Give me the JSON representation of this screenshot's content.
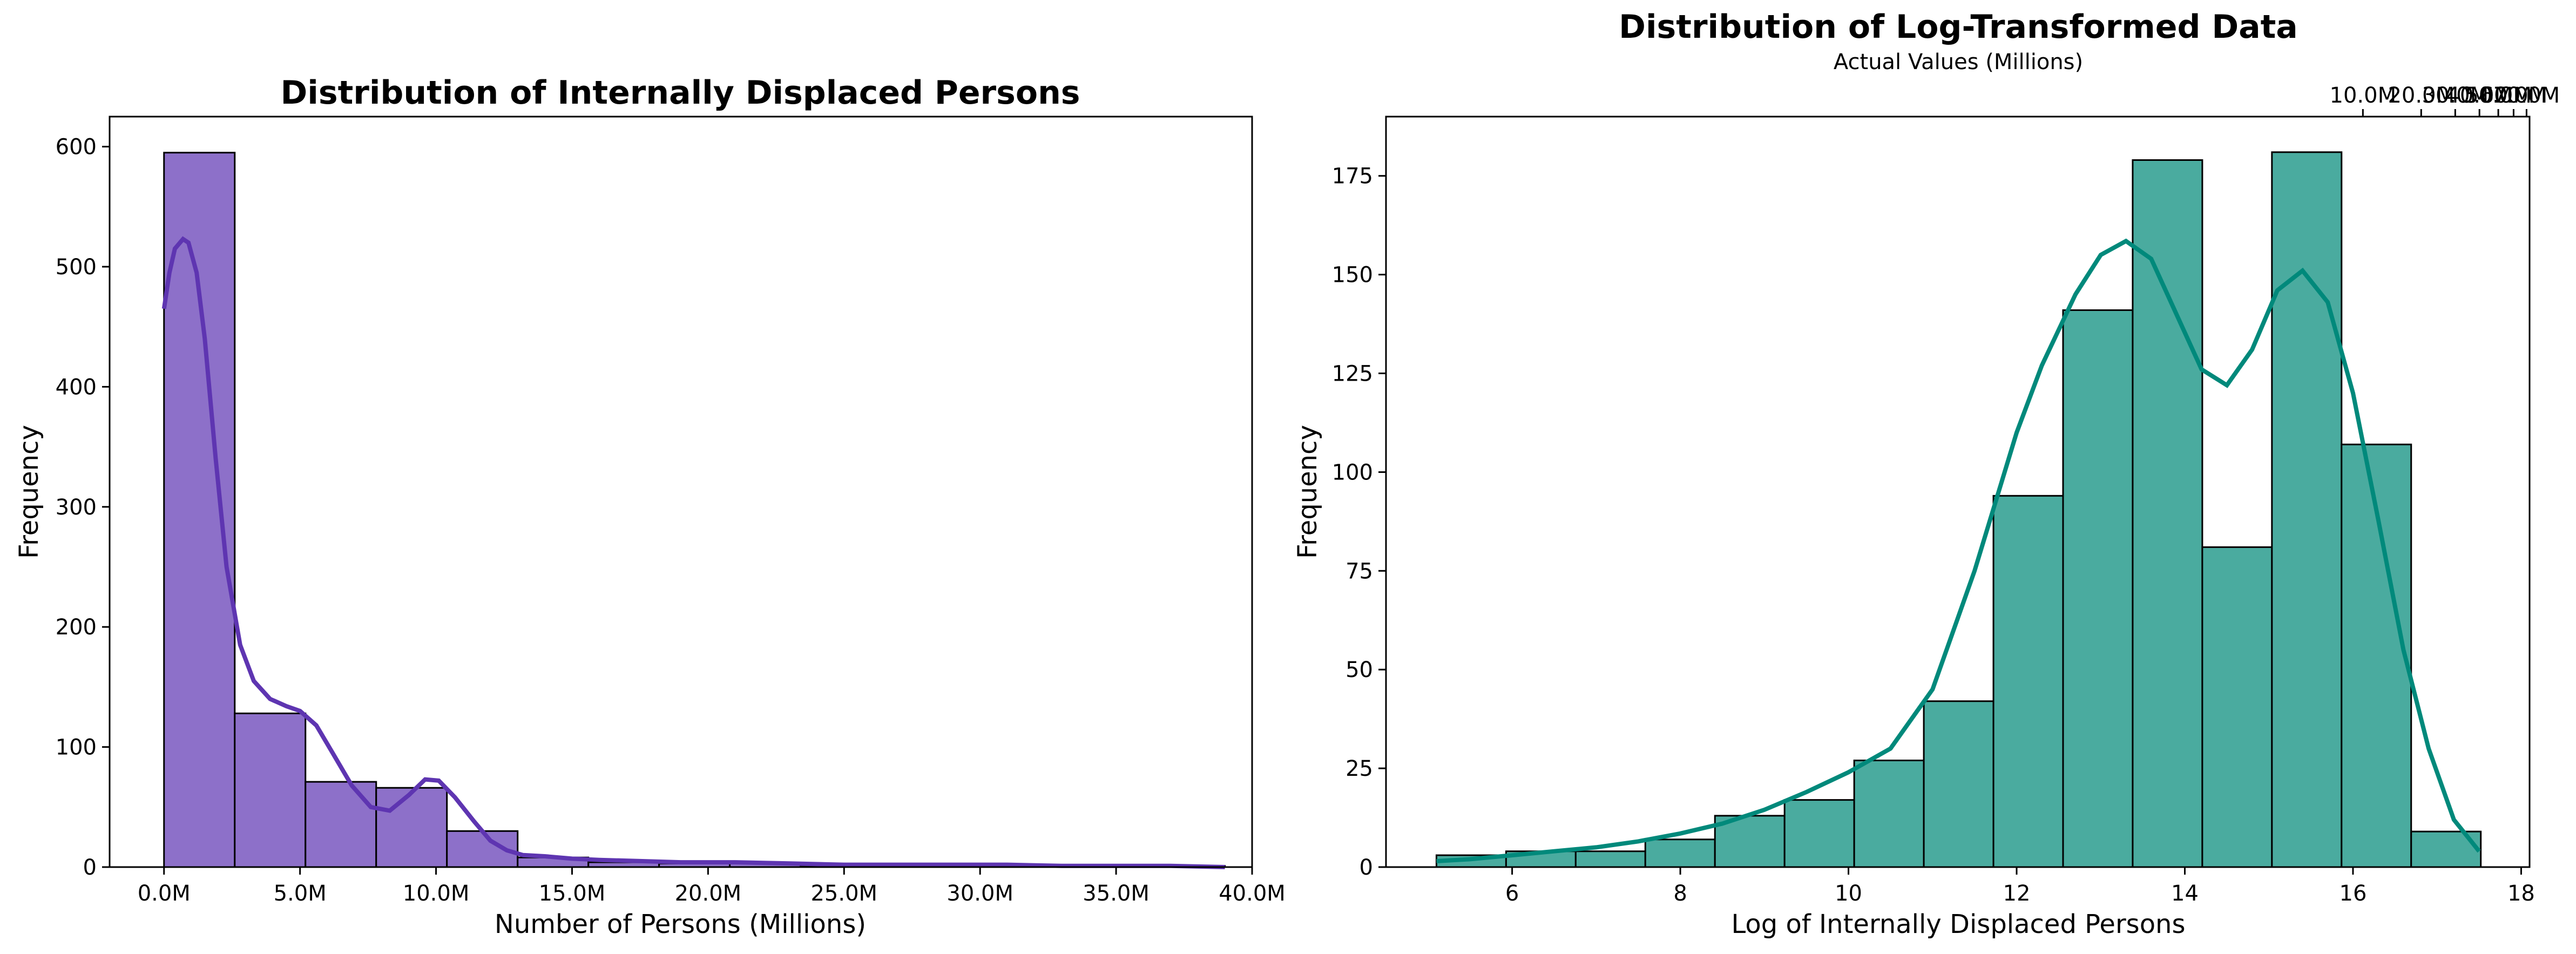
{
  "chart_data": [
    {
      "type": "bar",
      "title": "Distribution of Internally Displaced Persons",
      "xlabel": "Number of Persons (Millions)",
      "ylabel": "Frequency",
      "xlim": [
        -2.0,
        40.0
      ],
      "ylim": [
        0,
        625
      ],
      "x_ticks": [
        0,
        5,
        10,
        15,
        20,
        25,
        30,
        35,
        40
      ],
      "x_tick_labels": [
        "0.0M",
        "5.0M",
        "10.0M",
        "15.0M",
        "20.0M",
        "25.0M",
        "30.0M",
        "35.0M",
        "40.0M"
      ],
      "y_ticks": [
        0,
        100,
        200,
        300,
        400,
        500,
        600
      ],
      "bin_edges": [
        0.0,
        2.6,
        5.2,
        7.8,
        10.4,
        13.0,
        15.6,
        18.2,
        20.8,
        23.4,
        26.0,
        28.6,
        31.2,
        33.8,
        36.4,
        39.0
      ],
      "values": [
        595,
        128,
        71,
        66,
        30,
        8,
        4,
        3,
        3,
        1,
        1,
        1,
        0,
        0,
        1
      ],
      "bar_color": "#8d70c9",
      "kde_color": "#5e35b1",
      "kde": {
        "x": [
          0,
          0.2,
          0.4,
          0.7,
          0.9,
          1.2,
          1.5,
          1.9,
          2.3,
          2.8,
          3.3,
          3.9,
          4.5,
          5.0,
          5.6,
          6.2,
          6.9,
          7.6,
          8.3,
          9.0,
          9.6,
          10.1,
          10.7,
          11.4,
          12.0,
          12.6,
          13.2,
          14.0,
          15.0,
          16.0,
          17.5,
          19.0,
          21.0,
          23.0,
          25.0,
          27.0,
          29.0,
          31.0,
          33.0,
          35.0,
          37.0,
          39.0
        ],
        "y": [
          465,
          495,
          515,
          523,
          520,
          495,
          440,
          340,
          250,
          185,
          155,
          140,
          134,
          130,
          118,
          95,
          68,
          50,
          47,
          60,
          73,
          72,
          58,
          38,
          22,
          14,
          10,
          9,
          7,
          6,
          5,
          4,
          4,
          3,
          2,
          2,
          2,
          2,
          1,
          1,
          1,
          0
        ]
      }
    },
    {
      "type": "bar",
      "title": "Distribution of Log-Transformed Data",
      "secondary_xlabel": "Actual Values (Millions)",
      "xlabel": "Log of Internally Displaced Persons",
      "ylabel": "Frequency",
      "xlim": [
        4.5,
        18.1
      ],
      "ylim": [
        0,
        190
      ],
      "x_ticks": [
        6,
        8,
        10,
        12,
        14,
        16,
        18
      ],
      "y_ticks": [
        0,
        25,
        50,
        75,
        100,
        125,
        150,
        175
      ],
      "top_ticks_log": [
        16.118,
        16.811,
        17.216,
        17.504,
        17.728,
        17.91,
        18.064
      ],
      "top_tick_labels": [
        "10.0M",
        "20.0M",
        "30.0M",
        "40.0M",
        "50.0M",
        "60.0M",
        "70.0M"
      ],
      "bin_edges": [
        5.1,
        5.928,
        6.756,
        7.584,
        8.412,
        9.24,
        10.068,
        10.896,
        11.724,
        12.552,
        13.38,
        14.208,
        15.036,
        15.864,
        16.692,
        17.52
      ],
      "values": [
        3,
        4,
        4,
        7,
        13,
        17,
        27,
        42,
        94,
        141,
        179,
        81,
        181,
        107,
        9
      ],
      "bar_color": "#4aab9f",
      "kde_color": "#00897b",
      "kde": {
        "x": [
          5.1,
          5.5,
          6.0,
          6.5,
          7.0,
          7.5,
          8.0,
          8.5,
          9.0,
          9.5,
          10.0,
          10.5,
          11.0,
          11.5,
          12.0,
          12.3,
          12.7,
          13.0,
          13.3,
          13.6,
          13.9,
          14.2,
          14.5,
          14.8,
          15.1,
          15.4,
          15.7,
          16.0,
          16.3,
          16.6,
          16.9,
          17.2,
          17.5
        ],
        "y": [
          1.5,
          2,
          3,
          4,
          5,
          6.5,
          8.5,
          11,
          14.5,
          19,
          24,
          30,
          45,
          75,
          110,
          127,
          145,
          155,
          158.5,
          154,
          140,
          126,
          122,
          131,
          146,
          151,
          143,
          120,
          88,
          55,
          30,
          12,
          4
        ]
      }
    }
  ]
}
